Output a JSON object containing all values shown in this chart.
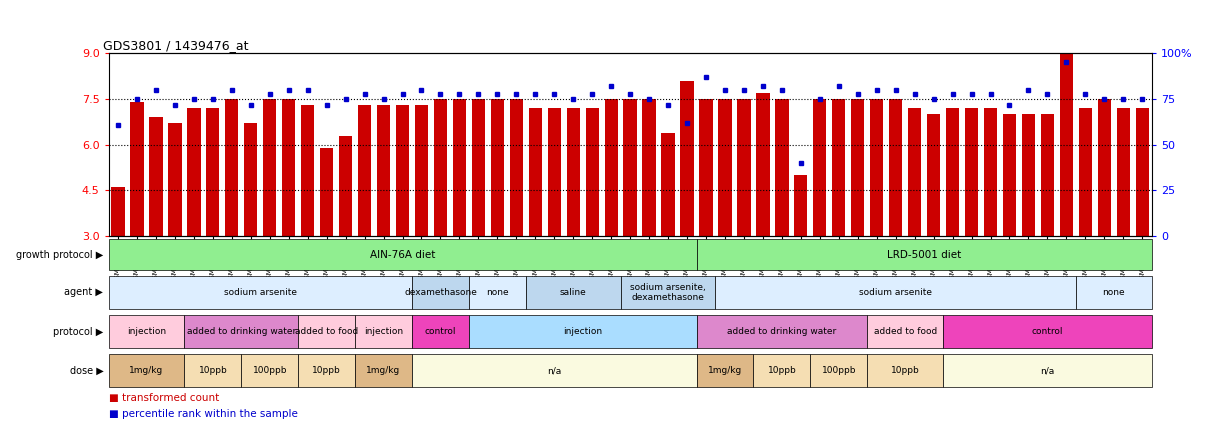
{
  "title": "GDS3801 / 1439476_at",
  "bar_color": "#CC0000",
  "dot_color": "#0000CC",
  "ylim_left": [
    3,
    9
  ],
  "ylim_right": [
    0,
    100
  ],
  "yticks_left": [
    3,
    4.5,
    6,
    7.5,
    9
  ],
  "yticks_right": [
    0,
    25,
    50,
    75,
    100
  ],
  "hlines": [
    4.5,
    6,
    7.5
  ],
  "samples": [
    "GSM279240",
    "GSM279245",
    "GSM279248",
    "GSM279250",
    "GSM279253",
    "GSM279234",
    "GSM279262",
    "GSM279269",
    "GSM279272",
    "GSM279231",
    "GSM279243",
    "GSM279261",
    "GSM279263",
    "GSM279230",
    "GSM279249",
    "GSM279258",
    "GSM279265",
    "GSM279273",
    "GSM279233",
    "GSM279236",
    "GSM279239",
    "GSM279247",
    "GSM279252",
    "GSM279232",
    "GSM279235",
    "GSM279264",
    "GSM279270",
    "GSM279275",
    "GSM279221",
    "GSM279260",
    "GSM279267",
    "GSM279271",
    "GSM279274",
    "GSM279238",
    "GSM279241",
    "GSM279251",
    "GSM279255",
    "GSM279268",
    "GSM279222",
    "GSM279226",
    "GSM279246",
    "GSM279259",
    "GSM279266",
    "GSM279227",
    "GSM279254",
    "GSM279257",
    "GSM279223",
    "GSM279228",
    "GSM279237",
    "GSM279242",
    "GSM279244",
    "GSM279224",
    "GSM279225",
    "GSM279229",
    "GSM279256"
  ],
  "bar_values": [
    4.6,
    7.4,
    6.9,
    6.7,
    7.2,
    7.2,
    7.5,
    6.7,
    7.5,
    7.5,
    7.3,
    5.9,
    6.3,
    7.3,
    7.3,
    7.3,
    7.3,
    7.5,
    7.5,
    7.5,
    7.5,
    7.5,
    7.2,
    7.2,
    7.2,
    7.2,
    7.5,
    7.5,
    7.5,
    6.4,
    8.1,
    7.5,
    7.5,
    7.5,
    7.7,
    7.5,
    5.0,
    7.5,
    7.5,
    7.5,
    7.5,
    7.5,
    7.2,
    7.0,
    7.2,
    7.2,
    7.2,
    7.0,
    7.0,
    7.0,
    9.0,
    7.2,
    7.5,
    7.2,
    7.2
  ],
  "dot_values": [
    61,
    75,
    80,
    72,
    75,
    75,
    80,
    72,
    78,
    80,
    80,
    72,
    75,
    78,
    75,
    78,
    80,
    78,
    78,
    78,
    78,
    78,
    78,
    78,
    75,
    78,
    82,
    78,
    75,
    72,
    62,
    87,
    80,
    80,
    82,
    80,
    40,
    75,
    82,
    78,
    80,
    80,
    78,
    75,
    78,
    78,
    78,
    72,
    80,
    78,
    95,
    78,
    75,
    75,
    75
  ],
  "row_labels": [
    "growth protocol",
    "agent",
    "protocol",
    "dose"
  ],
  "growth_protocol_segments": [
    {
      "label": "AIN-76A diet",
      "start": 0,
      "end": 31,
      "color": "#90EE90"
    },
    {
      "label": "LRD-5001 diet",
      "start": 31,
      "end": 55,
      "color": "#90EE90"
    }
  ],
  "agent_segments": [
    {
      "label": "sodium arsenite",
      "start": 0,
      "end": 16,
      "color": "#DDEEFF"
    },
    {
      "label": "dexamethasone",
      "start": 16,
      "end": 19,
      "color": "#BDD7EE"
    },
    {
      "label": "none",
      "start": 19,
      "end": 22,
      "color": "#DDEEFF"
    },
    {
      "label": "saline",
      "start": 22,
      "end": 27,
      "color": "#BDD7EE"
    },
    {
      "label": "sodium arsenite,\ndexamethasone",
      "start": 27,
      "end": 32,
      "color": "#BDD7EE"
    },
    {
      "label": "sodium arsenite",
      "start": 32,
      "end": 51,
      "color": "#DDEEFF"
    },
    {
      "label": "none",
      "start": 51,
      "end": 55,
      "color": "#DDEEFF"
    }
  ],
  "protocol_segments": [
    {
      "label": "injection",
      "start": 0,
      "end": 4,
      "color": "#FFCCDD"
    },
    {
      "label": "added to drinking water",
      "start": 4,
      "end": 10,
      "color": "#DD88CC"
    },
    {
      "label": "added to food",
      "start": 10,
      "end": 13,
      "color": "#FFCCDD"
    },
    {
      "label": "injection",
      "start": 13,
      "end": 16,
      "color": "#FFCCDD"
    },
    {
      "label": "control",
      "start": 16,
      "end": 19,
      "color": "#EE44BB"
    },
    {
      "label": "injection",
      "start": 19,
      "end": 31,
      "color": "#AADDFF"
    },
    {
      "label": "added to drinking water",
      "start": 31,
      "end": 40,
      "color": "#DD88CC"
    },
    {
      "label": "added to food",
      "start": 40,
      "end": 44,
      "color": "#FFCCDD"
    },
    {
      "label": "control",
      "start": 44,
      "end": 55,
      "color": "#EE44BB"
    }
  ],
  "dose_segments": [
    {
      "label": "1mg/kg",
      "start": 0,
      "end": 4,
      "color": "#DEB887"
    },
    {
      "label": "10ppb",
      "start": 4,
      "end": 7,
      "color": "#F5DEB3"
    },
    {
      "label": "100ppb",
      "start": 7,
      "end": 10,
      "color": "#F5DEB3"
    },
    {
      "label": "10ppb",
      "start": 10,
      "end": 13,
      "color": "#F5DEB3"
    },
    {
      "label": "1mg/kg",
      "start": 13,
      "end": 16,
      "color": "#DEB887"
    },
    {
      "label": "n/a",
      "start": 16,
      "end": 31,
      "color": "#FAFAE0"
    },
    {
      "label": "1mg/kg",
      "start": 31,
      "end": 34,
      "color": "#DEB887"
    },
    {
      "label": "10ppb",
      "start": 34,
      "end": 37,
      "color": "#F5DEB3"
    },
    {
      "label": "100ppb",
      "start": 37,
      "end": 40,
      "color": "#F5DEB3"
    },
    {
      "label": "10ppb",
      "start": 40,
      "end": 44,
      "color": "#F5DEB3"
    },
    {
      "label": "n/a",
      "start": 44,
      "end": 55,
      "color": "#FAFAE0"
    }
  ]
}
